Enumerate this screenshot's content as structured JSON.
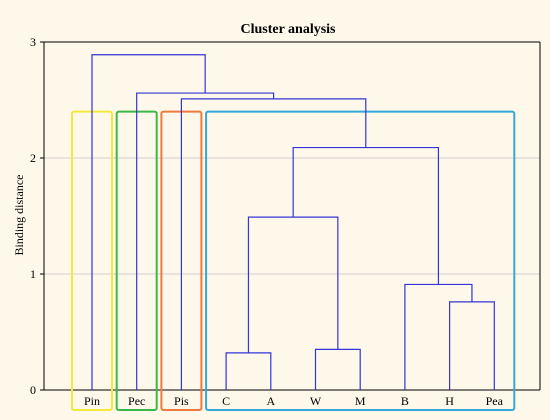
{
  "chart_data": {
    "type": "dendrogram",
    "title": "Cluster analysis",
    "xlabel": "",
    "ylabel": "Binding distance",
    "ylim": [
      0,
      3
    ],
    "yticks": [
      0,
      1,
      2,
      3
    ],
    "grid": "horizontal",
    "leaves": [
      "Pin",
      "Pec",
      "Pis",
      "C",
      "A",
      "W",
      "M",
      "B",
      "H",
      "Pea"
    ],
    "merges": [
      {
        "left": "C",
        "right": "A",
        "height": 0.32
      },
      {
        "left": "W",
        "right": "M",
        "height": 0.35
      },
      {
        "left": "H",
        "right": "Pea",
        "height": 0.76
      },
      {
        "left": "B",
        "right": "H+Pea",
        "height": 0.91
      },
      {
        "left": "C+A",
        "right": "W+M",
        "height": 1.49
      },
      {
        "left": "C+A+W+M",
        "right": "B+H+Pea",
        "height": 2.09
      },
      {
        "left": "Pis",
        "right": "C+A+W+M+B+H+Pea",
        "height": 2.51
      },
      {
        "left": "Pec",
        "right": "Pis+C+A+W+M+B+H+Pea",
        "height": 2.56
      },
      {
        "left": "Pin",
        "right": "Pec+Pis+C+A+W+M+B+H+Pea",
        "height": 2.89
      }
    ],
    "highlight_groups": [
      {
        "members": [
          "Pin"
        ],
        "color": "#f2ea3a"
      },
      {
        "members": [
          "Pec"
        ],
        "color": "#3cb84a"
      },
      {
        "members": [
          "Pis"
        ],
        "color": "#f07a3c"
      },
      {
        "members": [
          "C",
          "A",
          "W",
          "M",
          "B",
          "H",
          "Pea"
        ],
        "color": "#36a8d8"
      }
    ],
    "line_color": "#3434d8"
  }
}
